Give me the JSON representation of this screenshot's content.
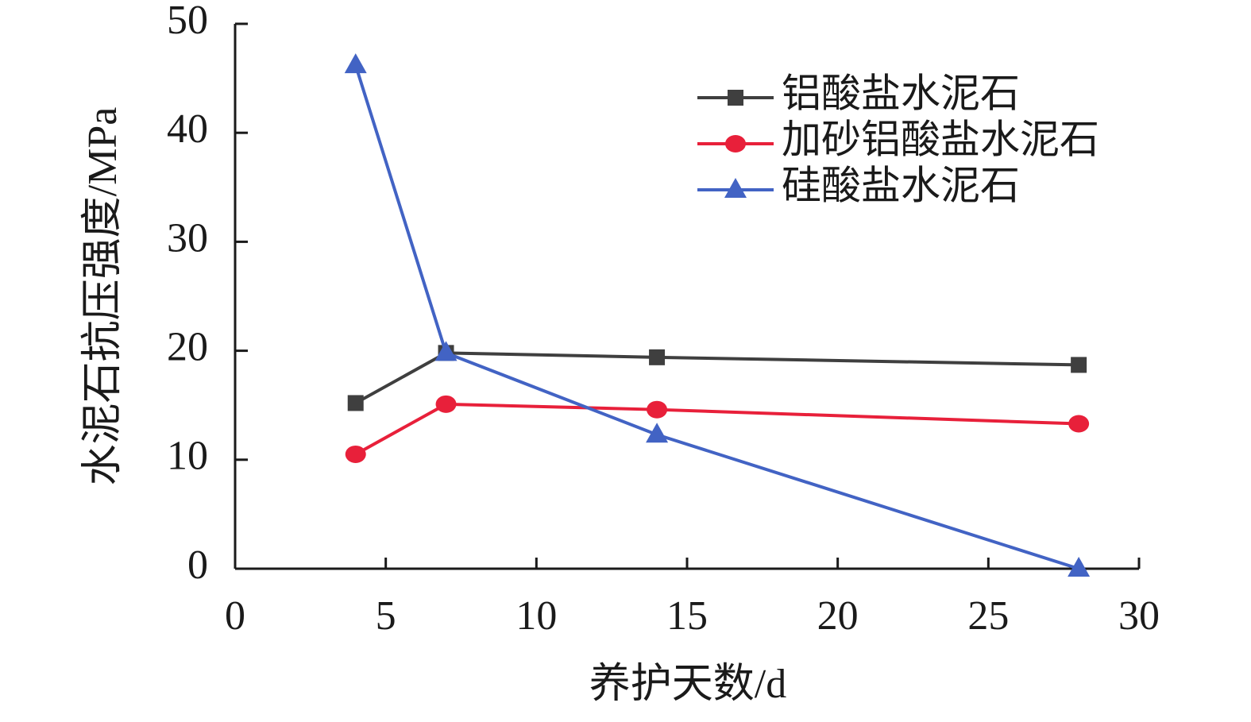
{
  "chart_data": {
    "type": "line",
    "x_label": "养护天数/d",
    "y_label": "水泥石抗压强度/MPa",
    "x": [
      4,
      7,
      14,
      28
    ],
    "series": [
      {
        "name": "铝酸盐水泥石",
        "color": "#3f3f3f",
        "marker": "square",
        "values": [
          15.2,
          19.8,
          19.4,
          18.7
        ]
      },
      {
        "name": "加砂铝酸盐水泥石",
        "color": "#e8203a",
        "marker": "circle",
        "values": [
          10.5,
          15.1,
          14.6,
          13.3
        ]
      },
      {
        "name": "硅酸盐水泥石",
        "color": "#4263c4",
        "marker": "triangle",
        "values": [
          46.2,
          19.8,
          12.3,
          0
        ]
      }
    ],
    "xlim": [
      0,
      30
    ],
    "xticks": [
      0,
      5,
      10,
      15,
      20,
      25,
      30
    ],
    "ylim": [
      0,
      50
    ],
    "yticks": [
      0,
      10,
      20,
      30,
      40,
      50
    ],
    "legend": "upper-right"
  }
}
